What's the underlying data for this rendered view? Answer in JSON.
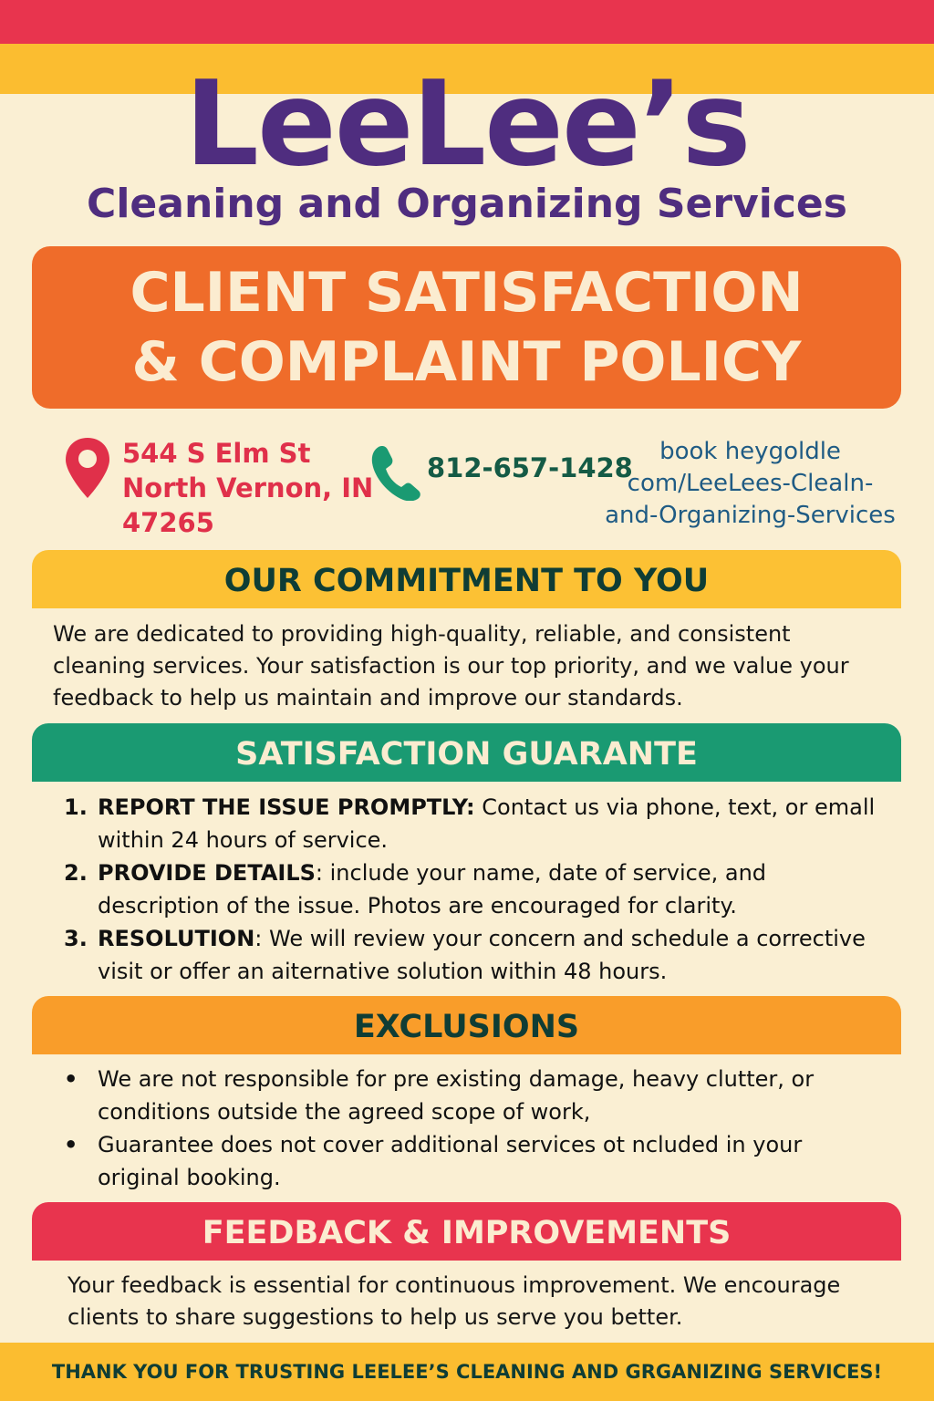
{
  "colors": {
    "red": "#e8344e",
    "yellow": "#fbbd30",
    "purple": "#4f2d7f",
    "orange": "#ef6c2a",
    "green": "#1a9a72",
    "light_orange": "#f99d2a",
    "cream": "#faefd3",
    "dark_green": "#0f3d35"
  },
  "brand": {
    "name": "LeeLee’s",
    "subtitle": "Cleaning and Organizing Services"
  },
  "banner": {
    "line1": "CLIENT SATISFACTION",
    "line2": "& COMPLAINT POLICY"
  },
  "contact": {
    "address_icon": "map-pin-icon",
    "address": [
      "544 S Elm St",
      "North Vernon, IN",
      "47265"
    ],
    "phone_icon": "phone-icon",
    "phone": "812-657-1428",
    "website": [
      "book heygoldle",
      "com/LeeLees-Clealn-",
      "and-Organizing-Services"
    ]
  },
  "commitment": {
    "heading": "OUR COMMITMENT TO YOU",
    "body": "We are dedicated to providing high-quality, reliable, and consistent cleaning services. Your satisfaction is our top priority, and we value your feedback to help us maintain and improve our standards."
  },
  "guarantee": {
    "heading": "SATISFACTION GUARANTE",
    "items": [
      {
        "num": "1.",
        "title": "REPORT THE ISSUE PROMPTLY:",
        "text": " Contact us via phone, text, or emall within 24 hours of service."
      },
      {
        "num": "2.",
        "title": "PROVIDE DETAILS",
        "text": ": include your name, date of service, and description of the issue. Photos are encouraged for clarity."
      },
      {
        "num": "3.",
        "title": "RESOLUTION",
        "text": ": We will review your concern and schedule a corrective visit or offer an aiternative solution within 48 hours."
      }
    ]
  },
  "exclusions": {
    "heading": "EXCLUSIONS",
    "items": [
      "We are not responsible for pre existing damage, heavy clutter, or conditions outside the agreed scope of work,",
      "Guarantee does not cover additional services ot ncluded in your original booking."
    ]
  },
  "feedback": {
    "heading": "FEEDBACK & IMPROVEMENTS",
    "body": "Your feedback is essential for continuous improvement. We encourage clients to share suggestions to help us serve you better."
  },
  "footer": "THANK YOU FOR TRUSTING LEELEE’S CLEANING AND GRGANIZING SERVICES!"
}
